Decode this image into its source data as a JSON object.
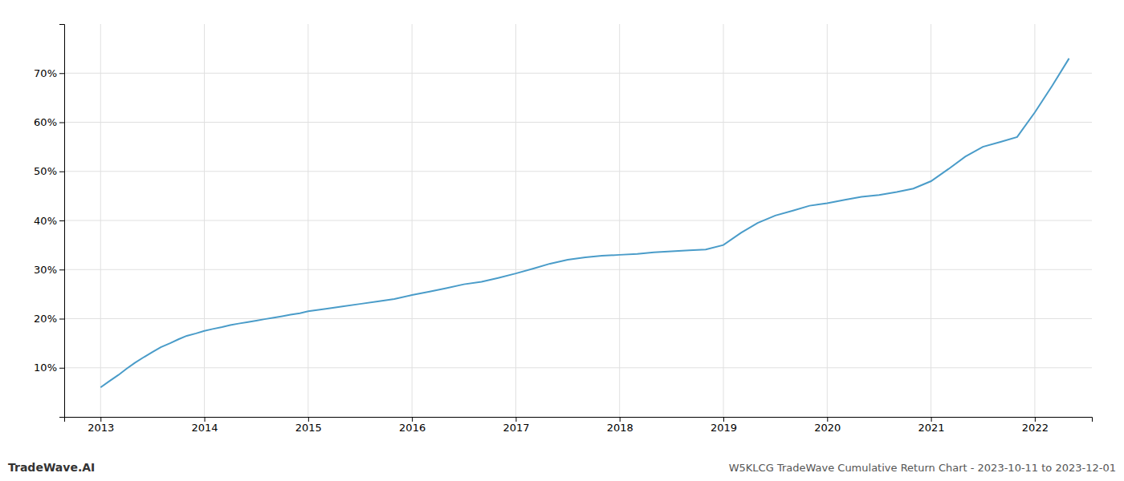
{
  "chart_data": {
    "type": "line",
    "title": "W5KLCG TradeWave Cumulative Return Chart - 2023-10-11 to 2023-12-01",
    "annotations": [
      "TradeWave.AI"
    ],
    "color": "#4a9cc9",
    "grid": true,
    "x": [
      2013.0,
      2013.08,
      2013.17,
      2013.25,
      2013.33,
      2013.42,
      2013.5,
      2013.58,
      2013.67,
      2013.75,
      2013.83,
      2013.92,
      2014.0,
      2014.08,
      2014.17,
      2014.25,
      2014.33,
      2014.42,
      2014.5,
      2014.58,
      2014.67,
      2014.75,
      2014.83,
      2014.92,
      2015.0,
      2015.17,
      2015.33,
      2015.5,
      2015.67,
      2015.83,
      2016.0,
      2016.17,
      2016.33,
      2016.5,
      2016.67,
      2016.83,
      2017.0,
      2017.17,
      2017.33,
      2017.5,
      2017.67,
      2017.83,
      2018.0,
      2018.17,
      2018.33,
      2018.5,
      2018.67,
      2018.83,
      2019.0,
      2019.17,
      2019.33,
      2019.5,
      2019.67,
      2019.83,
      2020.0,
      2020.17,
      2020.33,
      2020.5,
      2020.67,
      2020.83,
      2021.0,
      2021.17,
      2021.33,
      2021.5,
      2021.67,
      2021.83,
      2022.0,
      2022.17,
      2022.33
    ],
    "values": [
      6.0,
      7.2,
      8.5,
      9.8,
      11.0,
      12.2,
      13.2,
      14.2,
      15.0,
      15.8,
      16.5,
      17.0,
      17.5,
      17.9,
      18.3,
      18.7,
      19.0,
      19.3,
      19.6,
      19.9,
      20.2,
      20.5,
      20.8,
      21.1,
      21.5,
      22.0,
      22.5,
      23.0,
      23.5,
      24.0,
      24.8,
      25.5,
      26.2,
      27.0,
      27.5,
      28.3,
      29.2,
      30.2,
      31.2,
      32.0,
      32.5,
      32.8,
      33.0,
      33.2,
      33.5,
      33.7,
      33.9,
      34.1,
      35.0,
      37.5,
      39.5,
      41.0,
      42.0,
      43.0,
      43.5,
      44.2,
      44.8,
      45.2,
      45.8,
      46.5,
      48.0,
      50.5,
      53.0,
      55.0,
      56.0,
      57.0,
      62.0,
      67.5,
      73.0
    ],
    "xlim": [
      2012.65,
      2022.55
    ],
    "ylim": [
      0,
      80
    ],
    "xticks": [
      2013,
      2014,
      2015,
      2016,
      2017,
      2018,
      2019,
      2020,
      2021,
      2022
    ],
    "yticks": [
      {
        "value": 10,
        "label": "10%"
      },
      {
        "value": 20,
        "label": "20%"
      },
      {
        "value": 30,
        "label": "30%"
      },
      {
        "value": 40,
        "label": "40%"
      },
      {
        "value": 50,
        "label": "50%"
      },
      {
        "value": 60,
        "label": "60%"
      },
      {
        "value": 70,
        "label": "70%"
      }
    ]
  }
}
